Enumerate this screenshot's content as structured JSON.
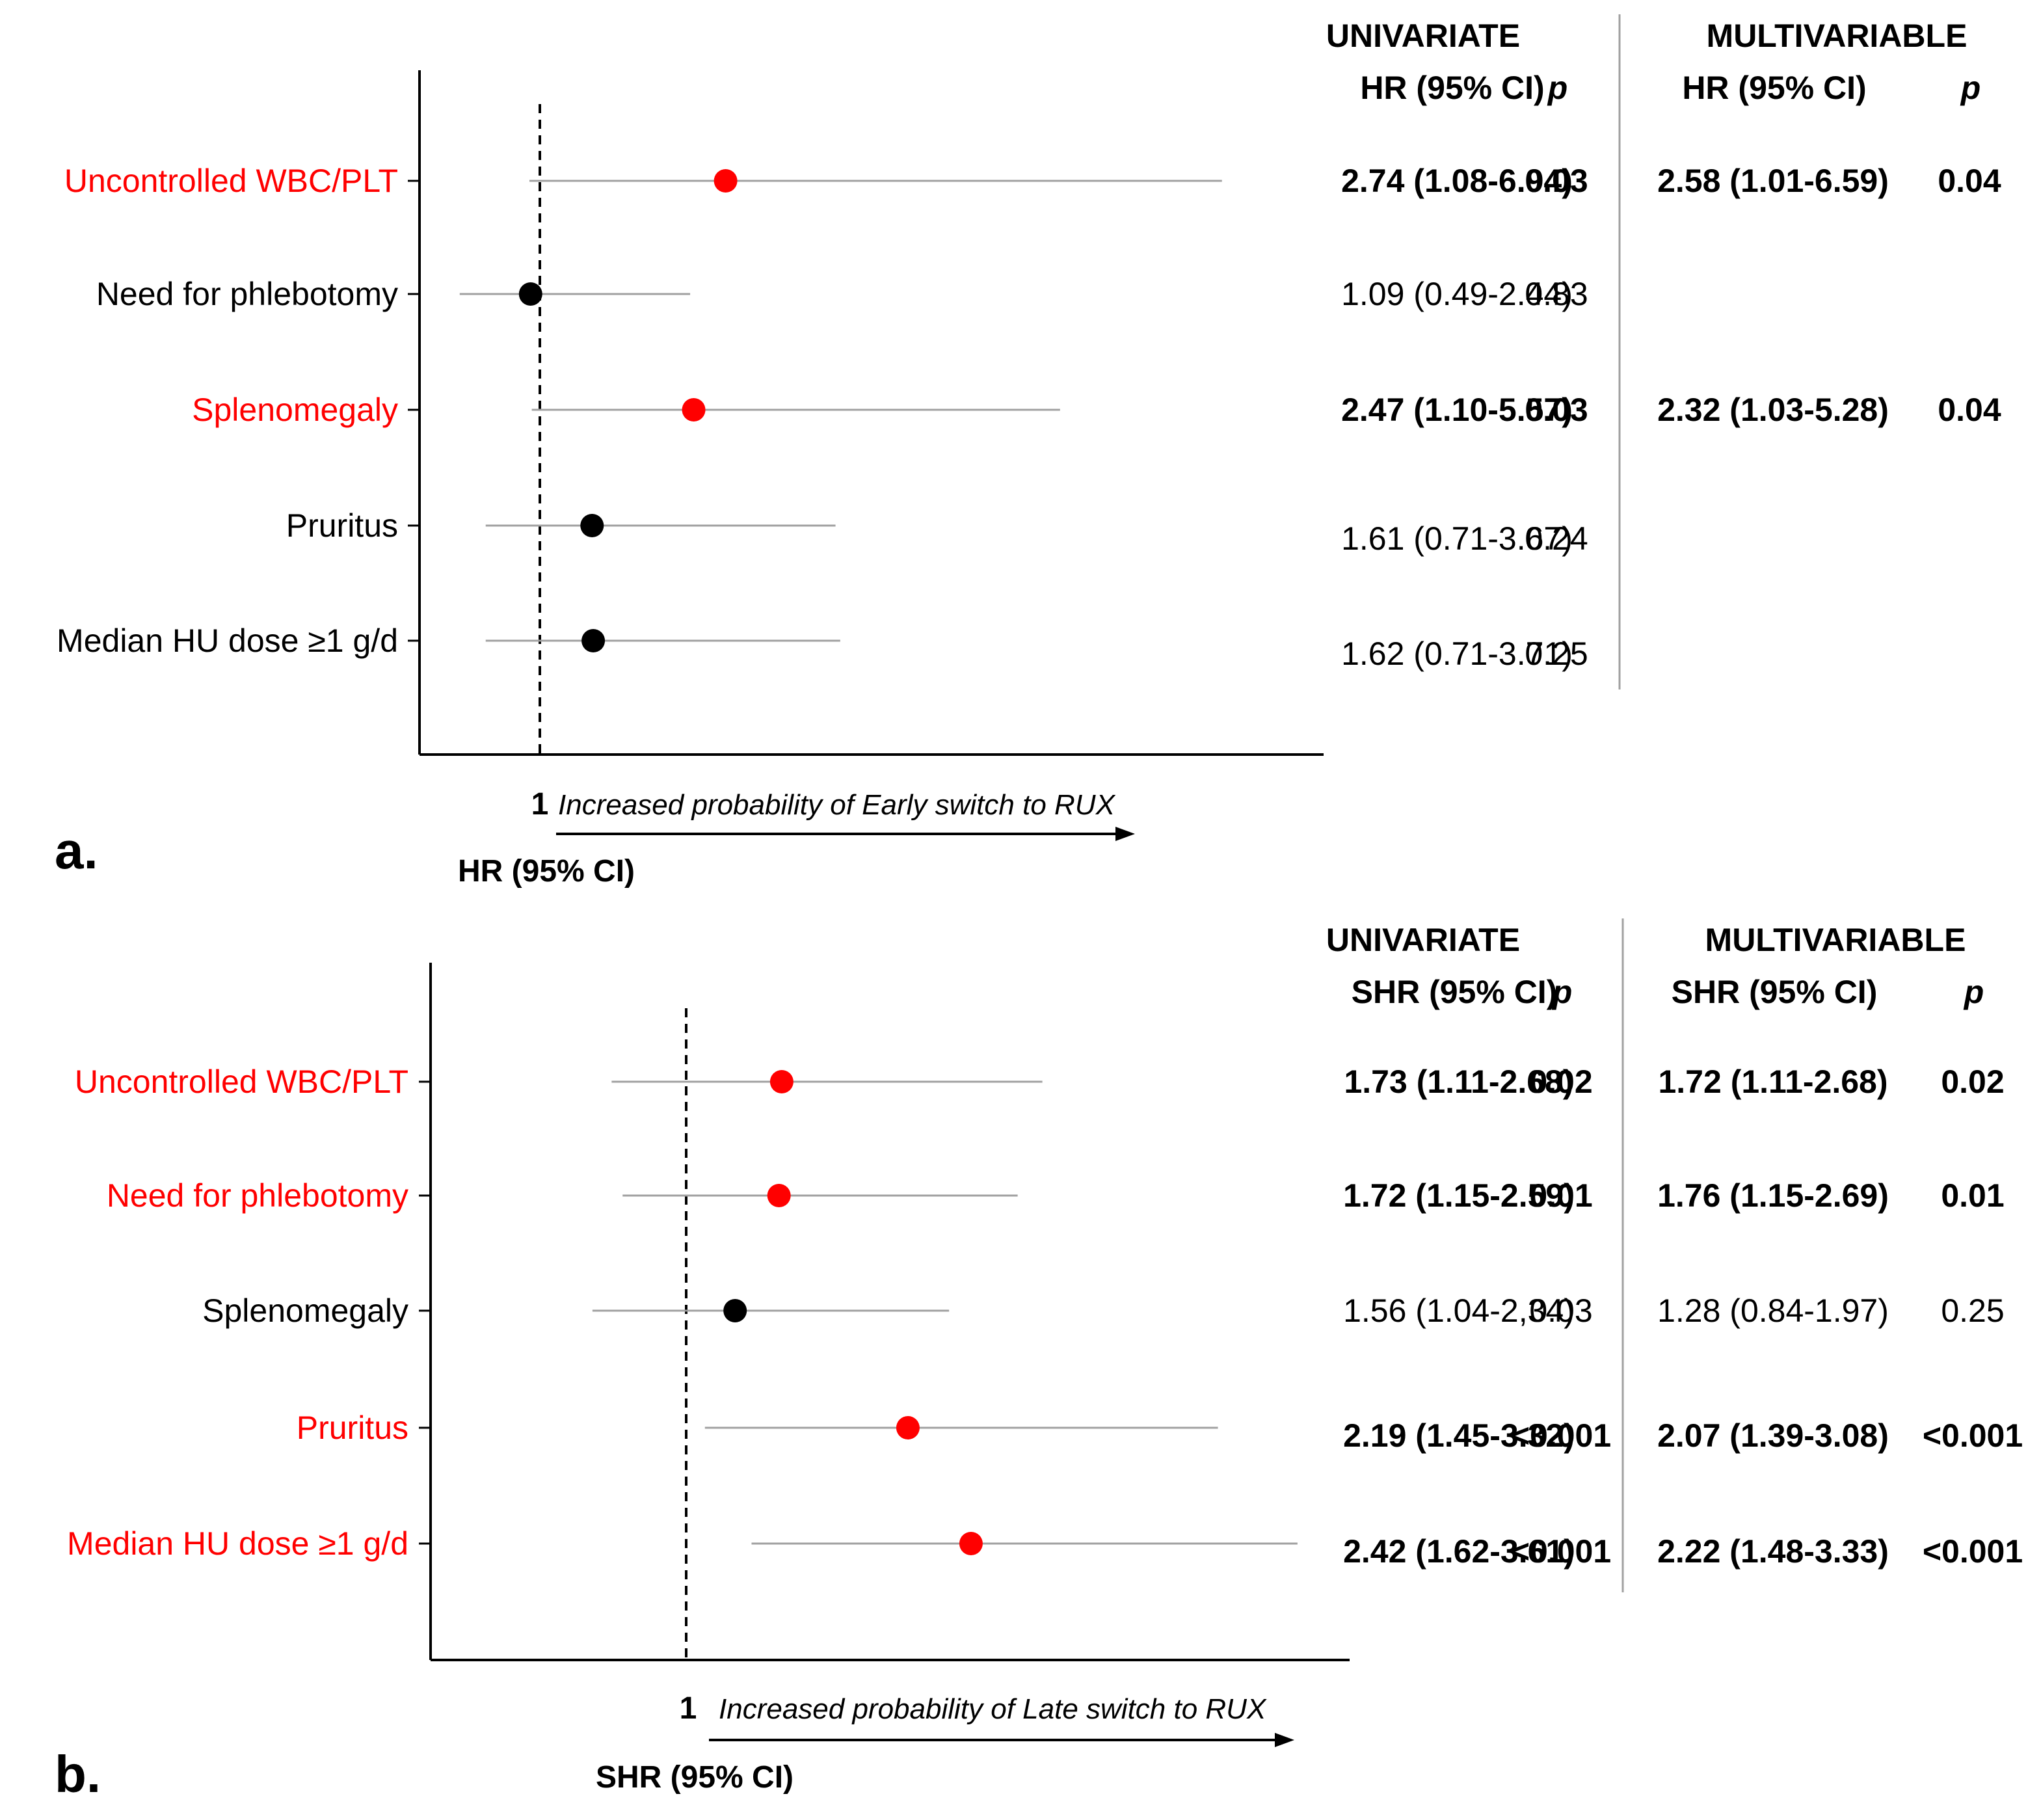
{
  "colors": {
    "significant": "#ff0000",
    "normal": "#000000",
    "ci_line": "#a0a0a0",
    "divider": "#a0a0a0"
  },
  "chart_data": [
    {
      "type": "forest",
      "panel_label": "a.",
      "x_axis_label": "HR (95% CI)",
      "reference_tick": "1",
      "arrow_caption": "Increased probability of Early switch to RUX",
      "headers": {
        "univariate": "UNIVARIATE",
        "multivariable": "MULTIVARIABLE",
        "estimate": "HR (95% CI)",
        "p": "p"
      },
      "rows": [
        {
          "label": "Uncontrolled WBC/PLT",
          "significant": true,
          "hr": 2.74,
          "lo": 1.08,
          "hi": 6.94,
          "uni_ci": "2.74 (1.08-6.94)",
          "uni_p": "0.03",
          "multi_ci": "2.58 (1.01-6.59)",
          "multi_p": "0.04"
        },
        {
          "label": "Need for phlebotomy",
          "significant": false,
          "hr": 1.09,
          "lo": 0.49,
          "hi": 2.44,
          "uni_ci": "1.09 (0.49-2.44)",
          "uni_p": "0.83",
          "multi_ci": "",
          "multi_p": ""
        },
        {
          "label": "Splenomegaly",
          "significant": true,
          "hr": 2.47,
          "lo": 1.1,
          "hi": 5.57,
          "uni_ci": "2.47 (1.10-5.57)",
          "uni_p": "0.03",
          "multi_ci": "2.32 (1.03-5.28)",
          "multi_p": "0.04"
        },
        {
          "label": "Pruritus",
          "significant": false,
          "hr": 1.61,
          "lo": 0.71,
          "hi": 3.67,
          "uni_ci": "1.61 (0.71-3.67)",
          "uni_p": "0.24",
          "multi_ci": "",
          "multi_p": ""
        },
        {
          "label": "Median HU dose ≥1 g/d",
          "significant": false,
          "hr": 1.62,
          "lo": 0.71,
          "hi": 3.71,
          "uni_ci": "1.62 (0.71-3.71)",
          "uni_p": "0.25",
          "multi_ci": "",
          "multi_p": ""
        }
      ]
    },
    {
      "type": "forest",
      "panel_label": "b.",
      "x_axis_label": "SHR (95% CI)",
      "reference_tick": "1",
      "arrow_caption": "Increased probability of Late switch to RUX",
      "headers": {
        "univariate": "UNIVARIATE",
        "multivariable": "MULTIVARIABLE",
        "estimate": "SHR (95% CI)",
        "p": "p"
      },
      "rows": [
        {
          "label": "Uncontrolled WBC/PLT",
          "significant": true,
          "hr": 1.73,
          "lo": 1.11,
          "hi": 2.68,
          "uni_ci": "1.73 (1.11-2.68)",
          "uni_p": "0.02",
          "multi_ci": "1.72 (1.11-2.68)",
          "multi_p": "0.02"
        },
        {
          "label": "Need for phlebotomy",
          "significant": true,
          "hr": 1.72,
          "lo": 1.15,
          "hi": 2.59,
          "uni_ci": "1.72 (1.15-2.59)",
          "uni_p": "0.01",
          "multi_ci": "1.76 (1.15-2.69)",
          "multi_p": "0.01"
        },
        {
          "label": "Splenomegaly",
          "significant": false,
          "hr": 1.56,
          "lo": 1.04,
          "hi": 2.34,
          "uni_ci": "1.56 (1.04-2,34)",
          "uni_p": "0.03",
          "multi_ci": "1.28 (0.84-1.97)",
          "multi_p": "0.25"
        },
        {
          "label": "Pruritus",
          "significant": true,
          "hr": 2.19,
          "lo": 1.45,
          "hi": 3.32,
          "uni_ci": "2.19 (1.45-3.32)",
          "uni_p": "<0.001",
          "multi_ci": "2.07 (1.39-3.08)",
          "multi_p": "<0.001"
        },
        {
          "label": "Median HU dose ≥1 g/d",
          "significant": true,
          "hr": 2.42,
          "lo": 1.62,
          "hi": 3.61,
          "uni_ci": "2.42 (1.62-3.61)",
          "uni_p": "<0.001",
          "multi_ci": "2.22 (1.48-3.33)",
          "multi_p": "<0.001"
        }
      ]
    }
  ]
}
